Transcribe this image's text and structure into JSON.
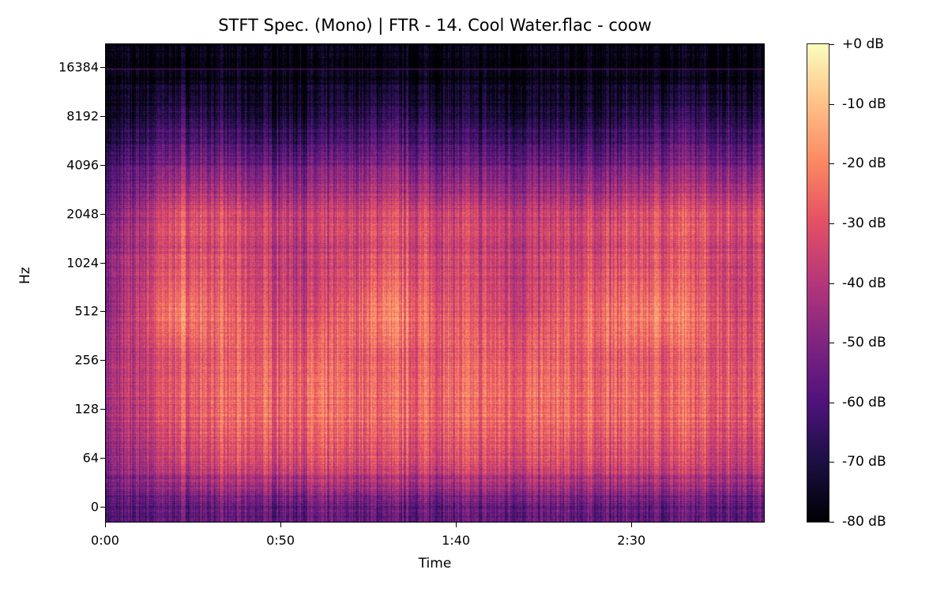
{
  "chart_data": {
    "type": "heatmap",
    "title": "STFT Spec. (Mono) | FTR - 14. Cool Water.flac - coow",
    "xlabel": "Time",
    "ylabel": "Hz",
    "colormap": "magma",
    "x_ticks": [
      "0:00",
      "0:50",
      "1:40",
      "2:30"
    ],
    "x_tick_seconds": [
      0,
      50,
      100,
      150
    ],
    "xlim_seconds": [
      0,
      188
    ],
    "y_scale": "symlog",
    "y_ticks": [
      "0",
      "64",
      "128",
      "256",
      "512",
      "1024",
      "2048",
      "4096",
      "8192",
      "16384"
    ],
    "colorbar_ticks": [
      "+0 dB",
      "-10 dB",
      "-20 dB",
      "-30 dB",
      "-40 dB",
      "-50 dB",
      "-60 dB",
      "-70 dB",
      "-80 dB"
    ],
    "zlim_db": [
      -80,
      0
    ],
    "time_seconds": [
      0,
      20,
      40,
      60,
      80,
      100,
      120,
      140,
      160,
      180
    ],
    "frequency_hz": [
      0,
      64,
      128,
      256,
      512,
      1024,
      2048,
      4096,
      8192,
      16384
    ],
    "db_values": [
      [
        -60,
        -55,
        -55,
        -55,
        -55,
        -55,
        -55,
        -55,
        -55,
        -55
      ],
      [
        -50,
        -35,
        -32,
        -32,
        -32,
        -32,
        -32,
        -32,
        -32,
        -35
      ],
      [
        -45,
        -28,
        -25,
        -25,
        -25,
        -25,
        -25,
        -25,
        -25,
        -28
      ],
      [
        -45,
        -30,
        -28,
        -28,
        -28,
        -28,
        -28,
        -28,
        -28,
        -30
      ],
      [
        -50,
        -20,
        -30,
        -35,
        -20,
        -30,
        -35,
        -25,
        -20,
        -32
      ],
      [
        -50,
        -30,
        -35,
        -40,
        -30,
        -35,
        -38,
        -33,
        -30,
        -35
      ],
      [
        -55,
        -30,
        -35,
        -38,
        -32,
        -35,
        -38,
        -35,
        -30,
        -32
      ],
      [
        -65,
        -50,
        -55,
        -55,
        -50,
        -55,
        -55,
        -55,
        -50,
        -52
      ],
      [
        -78,
        -65,
        -72,
        -72,
        -65,
        -70,
        -72,
        -72,
        -65,
        -68
      ],
      [
        -80,
        -80,
        -80,
        -80,
        -80,
        -80,
        -80,
        -80,
        -80,
        -80
      ]
    ]
  }
}
